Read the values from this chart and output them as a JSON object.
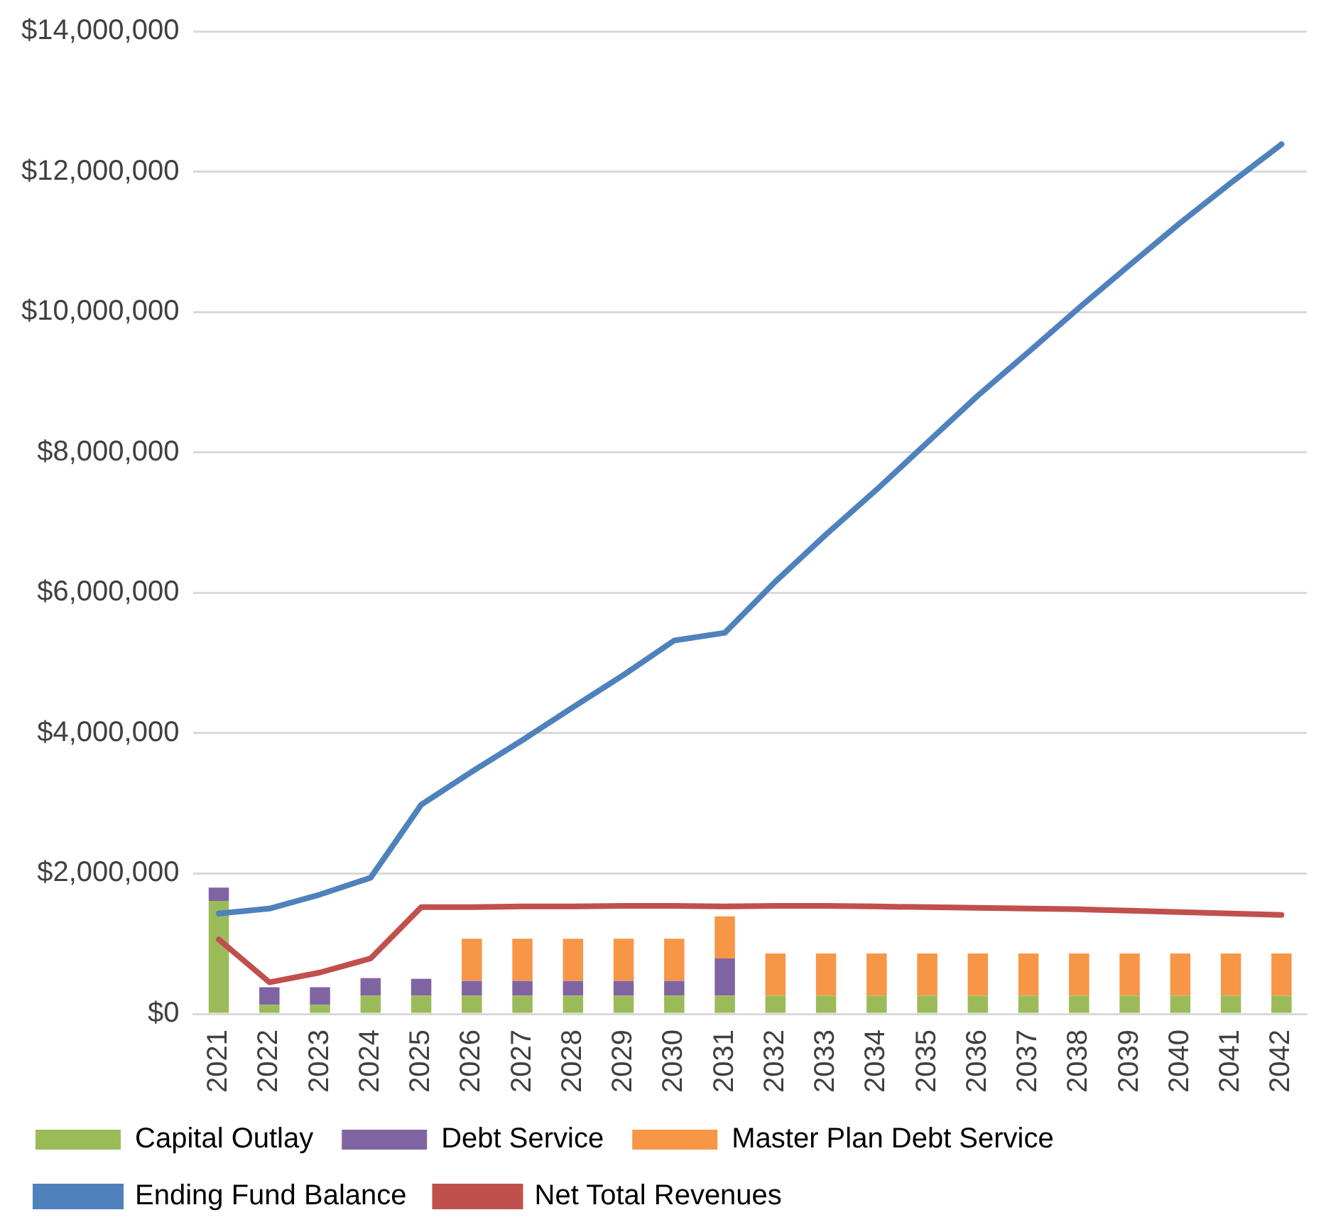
{
  "chart_data": {
    "type": "bar",
    "stacked": true,
    "categories": [
      "2021",
      "2022",
      "2023",
      "2024",
      "2025",
      "2026",
      "2027",
      "2028",
      "2029",
      "2030",
      "2031",
      "2032",
      "2033",
      "2034",
      "2035",
      "2036",
      "2037",
      "2038",
      "2039",
      "2040",
      "2041",
      "2042"
    ],
    "series": [
      {
        "name": "Capital Outlay",
        "color": "#9bbb59",
        "values": [
          1610000,
          130000,
          130000,
          260000,
          260000,
          260000,
          260000,
          260000,
          260000,
          260000,
          260000,
          260000,
          260000,
          260000,
          260000,
          260000,
          260000,
          260000,
          260000,
          260000,
          260000,
          260000
        ]
      },
      {
        "name": "Debt Service",
        "color": "#8064a2",
        "values": [
          190000,
          250000,
          250000,
          250000,
          240000,
          210000,
          210000,
          210000,
          210000,
          210000,
          530000,
          0,
          0,
          0,
          0,
          0,
          0,
          0,
          0,
          0,
          0,
          0
        ]
      },
      {
        "name": "Master Plan Debt Service",
        "color": "#f79646",
        "values": [
          0,
          0,
          0,
          0,
          0,
          600000,
          600000,
          600000,
          600000,
          600000,
          600000,
          600000,
          600000,
          600000,
          600000,
          600000,
          600000,
          600000,
          600000,
          600000,
          600000,
          600000
        ]
      },
      {
        "name": "Ending Fund Balance",
        "type": "line",
        "color": "#4f81bd",
        "values": [
          1430000,
          1500000,
          1700000,
          1940000,
          2980000,
          3450000,
          3900000,
          4370000,
          4830000,
          5320000,
          5430000,
          6160000,
          6830000,
          7470000,
          8140000,
          8810000,
          9430000,
          10060000,
          10670000,
          11270000,
          11840000,
          12390000
        ]
      },
      {
        "name": "Net Total Revenues",
        "type": "line",
        "color": "#c0504d",
        "values": [
          1060000,
          450000,
          590000,
          790000,
          1520000,
          1520000,
          1530000,
          1530000,
          1540000,
          1540000,
          1530000,
          1540000,
          1540000,
          1530000,
          1520000,
          1510000,
          1500000,
          1490000,
          1470000,
          1450000,
          1430000,
          1410000
        ]
      }
    ],
    "ylim": [
      0,
      14000000
    ],
    "yticks": [
      {
        "value": 0,
        "label": "$0"
      },
      {
        "value": 2000000,
        "label": "$2,000,000"
      },
      {
        "value": 4000000,
        "label": "$4,000,000"
      },
      {
        "value": 6000000,
        "label": "$6,000,000"
      },
      {
        "value": 8000000,
        "label": "$8,000,000"
      },
      {
        "value": 10000000,
        "label": "$10,000,000"
      },
      {
        "value": 12000000,
        "label": "$12,000,000"
      },
      {
        "value": 14000000,
        "label": "$14,000,000"
      }
    ],
    "grid": "y",
    "legend": "bottom"
  }
}
